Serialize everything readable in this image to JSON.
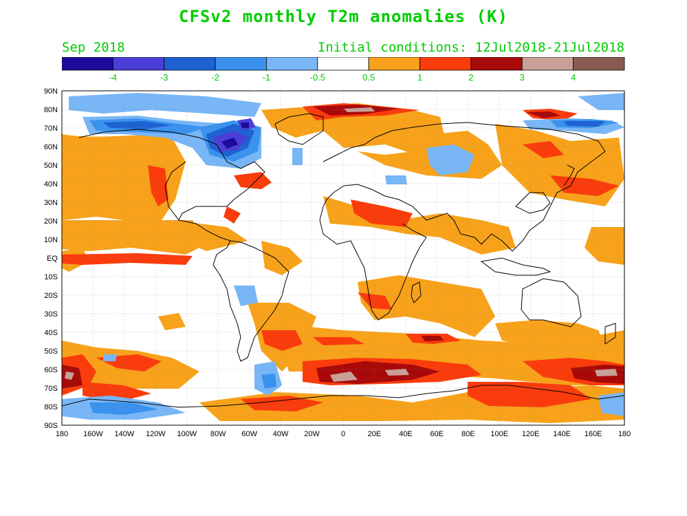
{
  "title": "CFSv2 monthly T2m anomalies (K)",
  "valid_month": "Sep 2018",
  "initial_conditions": "Initial conditions: 12Jul2018-21Jul2018",
  "colorbar": {
    "colors": [
      "#1e0a9a",
      "#4a3ed6",
      "#1e62d2",
      "#3a92ee",
      "#78b6f6",
      "#ffffff",
      "#f7a21a",
      "#fa3c0c",
      "#a80a0a",
      "#c8a098",
      "#8a5a52"
    ],
    "labels": [
      "-4",
      "-3",
      "-2",
      "-1",
      "-0.5",
      "0.5",
      "1",
      "2",
      "3",
      "4"
    ]
  },
  "axes": {
    "lat_labels": [
      "90N",
      "80N",
      "70N",
      "60N",
      "50N",
      "40N",
      "30N",
      "20N",
      "10N",
      "EQ",
      "10S",
      "20S",
      "30S",
      "40S",
      "50S",
      "60S",
      "70S",
      "80S",
      "90S"
    ],
    "lon_labels": [
      "180",
      "160W",
      "140W",
      "120W",
      "100W",
      "80W",
      "60W",
      "40W",
      "20W",
      "0",
      "20E",
      "40E",
      "60E",
      "80E",
      "100E",
      "120E",
      "140E",
      "160E",
      "180"
    ]
  }
}
